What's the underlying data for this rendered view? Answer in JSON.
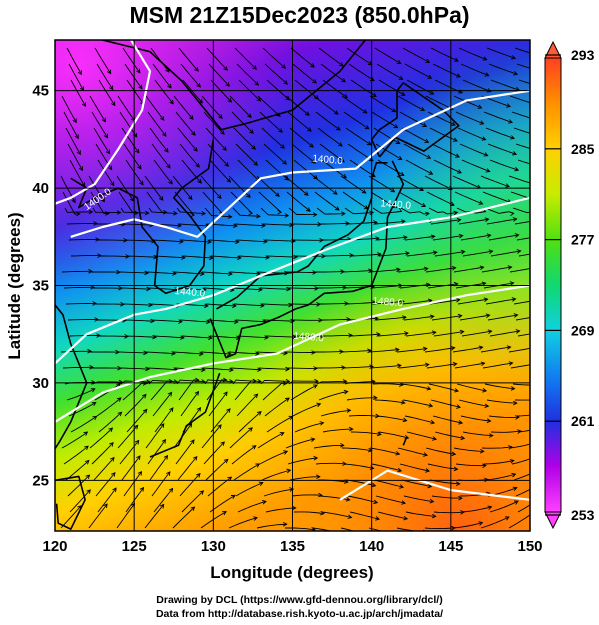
{
  "title": "MSM 21Z15Dec2023 (850.0hPa)",
  "x_axis": {
    "label": "Longitude (degrees)",
    "min": 120,
    "max": 150,
    "ticks": [
      "120",
      "125",
      "130",
      "135",
      "140",
      "145",
      "150"
    ]
  },
  "y_axis": {
    "label": "Latitude  (degrees)",
    "min": 22.4,
    "max": 47.6,
    "ticks": [
      "25",
      "30",
      "35",
      "40",
      "45"
    ]
  },
  "colorbar": {
    "min": 253,
    "max": 293,
    "labels": [
      "293",
      "285",
      "277",
      "269",
      "261",
      "253"
    ],
    "colors": [
      "#f5f",
      "#9300e0",
      "#1c44e0",
      "#10c8e8",
      "#10d870",
      "#7ee800",
      "#ffe800",
      "#ffa000",
      "#ff5a1a"
    ]
  },
  "contours": {
    "color": "#ffffff",
    "labels": [
      "1400.0",
      "1400.0",
      "1440.0",
      "1440.0",
      "1480.0",
      "1480.0"
    ]
  },
  "credits": {
    "line1": "Drawing by DCL (https://www.gfd-dennou.org/library/dcl/)",
    "line2": "Data from http://database.rish.kyoto-u.ac.jp/arch/jmadata/"
  }
}
